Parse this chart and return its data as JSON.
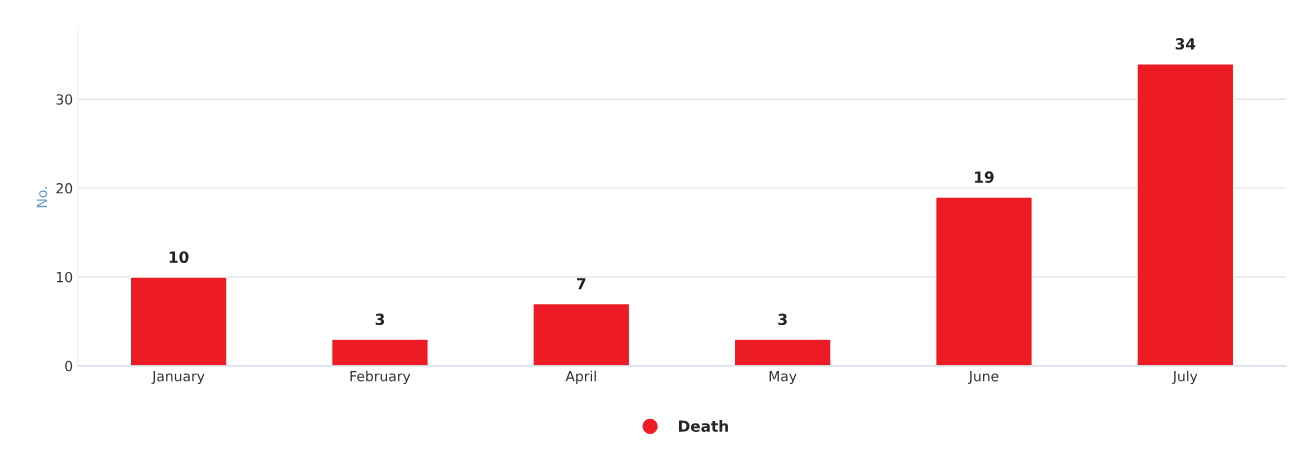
{
  "chart_data": {
    "type": "bar",
    "ylabel": "No.",
    "categories": [
      "January",
      "February",
      "April",
      "May",
      "June",
      "July"
    ],
    "series": [
      {
        "name": "Death",
        "color": "#ed1c24",
        "values": [
          10,
          3,
          7,
          3,
          19,
          34
        ]
      }
    ],
    "ylim": [
      0,
      38
    ],
    "yticks": [
      0,
      10,
      20,
      30
    ],
    "grid": "y",
    "legend": "bottom",
    "data_labels": true
  }
}
